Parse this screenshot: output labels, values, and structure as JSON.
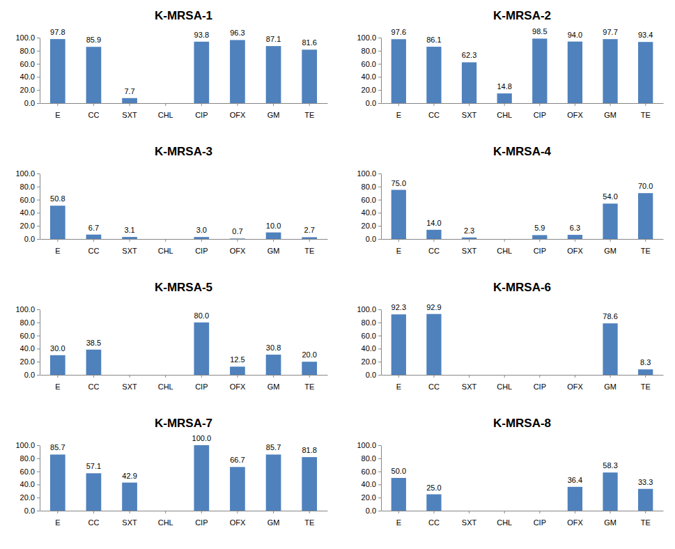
{
  "chart_data": [
    {
      "type": "bar",
      "title": "K-MRSA-1",
      "categories": [
        "E",
        "CC",
        "SXT",
        "CHL",
        "CIP",
        "OFX",
        "GM",
        "TE"
      ],
      "values": [
        97.8,
        85.9,
        7.7,
        null,
        93.8,
        96.3,
        87.1,
        81.6
      ],
      "value_labels": [
        "97.8",
        "85.9",
        "7.7",
        null,
        "93.8",
        "96.3",
        "87.1",
        "81.6"
      ],
      "color": "#4f81bd",
      "ylim": [
        0,
        100
      ],
      "yticks": [
        {
          "value": 0,
          "label": "0.0"
        },
        {
          "value": 20,
          "label": "20.0"
        },
        {
          "value": 40,
          "label": "40.0"
        },
        {
          "value": 60,
          "label": "60.0"
        },
        {
          "value": 80,
          "label": "80.0"
        },
        {
          "value": 100,
          "label": "100.0"
        }
      ],
      "grid": false,
      "data_labels": true
    },
    {
      "type": "bar",
      "title": "K-MRSA-2",
      "categories": [
        "E",
        "CC",
        "SXT",
        "CHL",
        "CIP",
        "OFX",
        "GM",
        "TE"
      ],
      "values": [
        97.6,
        86.1,
        62.3,
        14.8,
        98.5,
        94.0,
        97.7,
        93.4
      ],
      "value_labels": [
        "97.6",
        "86.1",
        "62.3",
        "14.8",
        "98.5",
        "94.0",
        "97.7",
        "93.4"
      ],
      "color": "#4f81bd",
      "ylim": [
        0,
        100
      ],
      "yticks": [
        {
          "value": 0,
          "label": "0.0"
        },
        {
          "value": 20,
          "label": "20.0"
        },
        {
          "value": 40,
          "label": "40.0"
        },
        {
          "value": 60,
          "label": "60.0"
        },
        {
          "value": 80,
          "label": "80.0"
        },
        {
          "value": 100,
          "label": "100.0"
        }
      ],
      "grid": false,
      "data_labels": true
    },
    {
      "type": "bar",
      "title": "K-MRSA-3",
      "categories": [
        "E",
        "CC",
        "SXT",
        "CHL",
        "CIP",
        "OFX",
        "GM",
        "TE"
      ],
      "values": [
        50.8,
        6.7,
        3.1,
        null,
        3.0,
        0.7,
        10.0,
        2.7
      ],
      "value_labels": [
        "50.8",
        "6.7",
        "3.1",
        null,
        "3.0",
        "0.7",
        "10.0",
        "2.7"
      ],
      "color": "#4f81bd",
      "ylim": [
        0,
        100
      ],
      "yticks": [
        {
          "value": 0,
          "label": "0.0"
        },
        {
          "value": 20,
          "label": "20.0"
        },
        {
          "value": 40,
          "label": "40.0"
        },
        {
          "value": 60,
          "label": "60.0"
        },
        {
          "value": 80,
          "label": "80.0"
        },
        {
          "value": 100,
          "label": "100.0"
        }
      ],
      "grid": false,
      "data_labels": true
    },
    {
      "type": "bar",
      "title": "K-MRSA-4",
      "categories": [
        "E",
        "CC",
        "SXT",
        "CHL",
        "CIP",
        "OFX",
        "GM",
        "TE"
      ],
      "values": [
        75.0,
        14.0,
        2.3,
        null,
        5.9,
        6.3,
        54.0,
        70.0
      ],
      "value_labels": [
        "75.0",
        "14.0",
        "2.3",
        null,
        "5.9",
        "6.3",
        "54.0",
        "70.0"
      ],
      "color": "#4f81bd",
      "ylim": [
        0,
        100
      ],
      "yticks": [
        {
          "value": 0,
          "label": "0.0"
        },
        {
          "value": 20,
          "label": "20.0"
        },
        {
          "value": 40,
          "label": "40.0"
        },
        {
          "value": 60,
          "label": "60.0"
        },
        {
          "value": 80,
          "label": "80.0"
        },
        {
          "value": 100,
          "label": "100.0"
        }
      ],
      "grid": false,
      "data_labels": true
    },
    {
      "type": "bar",
      "title": "K-MRSA-5",
      "categories": [
        "E",
        "CC",
        "SXT",
        "CHL",
        "CIP",
        "OFX",
        "GM",
        "TE"
      ],
      "values": [
        30.0,
        38.5,
        null,
        null,
        80.0,
        12.5,
        30.8,
        20.0
      ],
      "value_labels": [
        "30.0",
        "38.5",
        null,
        null,
        "80.0",
        "12.5",
        "30.8",
        "20.0"
      ],
      "color": "#4f81bd",
      "ylim": [
        0,
        100
      ],
      "yticks": [
        {
          "value": 0,
          "label": "0.0"
        },
        {
          "value": 20,
          "label": "20.0"
        },
        {
          "value": 40,
          "label": "40.0"
        },
        {
          "value": 60,
          "label": "60.0"
        },
        {
          "value": 80,
          "label": "80.0"
        },
        {
          "value": 100,
          "label": "100.0"
        }
      ],
      "grid": false,
      "data_labels": true
    },
    {
      "type": "bar",
      "title": "K-MRSA-6",
      "categories": [
        "E",
        "CC",
        "SXT",
        "CHL",
        "CIP",
        "OFX",
        "GM",
        "TE"
      ],
      "values": [
        92.3,
        92.9,
        null,
        null,
        null,
        null,
        78.6,
        8.3
      ],
      "value_labels": [
        "92.3",
        "92.9",
        null,
        null,
        null,
        null,
        "78.6",
        "8.3"
      ],
      "color": "#4f81bd",
      "ylim": [
        0,
        100
      ],
      "yticks": [
        {
          "value": 0,
          "label": "0.0"
        },
        {
          "value": 20,
          "label": "20.0"
        },
        {
          "value": 40,
          "label": "40.0"
        },
        {
          "value": 60,
          "label": "60.0"
        },
        {
          "value": 80,
          "label": "80.0"
        },
        {
          "value": 100,
          "label": "100.0"
        }
      ],
      "grid": false,
      "data_labels": true
    },
    {
      "type": "bar",
      "title": "K-MRSA-7",
      "categories": [
        "E",
        "CC",
        "SXT",
        "CHL",
        "CIP",
        "OFX",
        "GM",
        "TE"
      ],
      "values": [
        85.7,
        57.1,
        42.9,
        null,
        100.0,
        66.7,
        85.7,
        81.8
      ],
      "value_labels": [
        "85.7",
        "57.1",
        "42.9",
        null,
        "100.0",
        "66.7",
        "85.7",
        "81.8"
      ],
      "color": "#4f81bd",
      "ylim": [
        0,
        100
      ],
      "yticks": [
        {
          "value": 0,
          "label": "0.0"
        },
        {
          "value": 20,
          "label": "20.0"
        },
        {
          "value": 40,
          "label": "40.0"
        },
        {
          "value": 60,
          "label": "60.0"
        },
        {
          "value": 80,
          "label": "80.0"
        },
        {
          "value": 100,
          "label": "100.0"
        }
      ],
      "grid": false,
      "data_labels": true
    },
    {
      "type": "bar",
      "title": "K-MRSA-8",
      "categories": [
        "E",
        "CC",
        "SXT",
        "CHL",
        "CIP",
        "OFX",
        "GM",
        "TE"
      ],
      "values": [
        50.0,
        25.0,
        null,
        null,
        null,
        36.4,
        58.3,
        33.3
      ],
      "value_labels": [
        "50.0",
        "25.0",
        null,
        null,
        null,
        "36.4",
        "58.3",
        "33.3"
      ],
      "color": "#4f81bd",
      "ylim": [
        0,
        100
      ],
      "yticks": [
        {
          "value": 0,
          "label": "0.0"
        },
        {
          "value": 20,
          "label": "20.0"
        },
        {
          "value": 40,
          "label": "40.0"
        },
        {
          "value": 60,
          "label": "60.0"
        },
        {
          "value": 80,
          "label": "80.0"
        },
        {
          "value": 100,
          "label": "100.0"
        }
      ],
      "grid": false,
      "data_labels": true
    }
  ]
}
